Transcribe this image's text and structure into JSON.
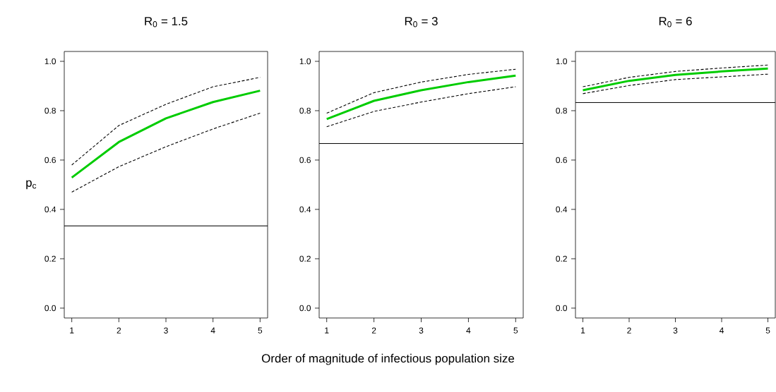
{
  "chart_data": [
    {
      "type": "line",
      "title": "R$_{0}$ = 1.5",
      "ylabel": "p$_{c}$",
      "x": [
        1,
        2,
        3,
        4,
        5
      ],
      "series": [
        {
          "color": "#000000",
          "line_style": "dashed",
          "values": [
            0.58,
            0.74,
            0.826,
            0.897,
            0.935
          ]
        },
        {
          "color": "#00cc00",
          "line_style": "solid",
          "values": [
            0.529,
            0.673,
            0.769,
            0.835,
            0.881
          ]
        },
        {
          "color": "#000000",
          "line_style": "dashed",
          "values": [
            0.47,
            0.573,
            0.654,
            0.726,
            0.79
          ]
        }
      ],
      "ref_lines": [
        {
          "axis": "y",
          "value": 0.333,
          "color": "#000000"
        }
      ],
      "xlim": [
        0.84,
        5.16
      ],
      "ylim": [
        -0.04,
        1.04
      ],
      "xticks": [
        1,
        2,
        3,
        4,
        5
      ],
      "yticks": [
        {
          "value": 0,
          "label": "0.0"
        },
        {
          "value": 0.2,
          "label": "0.2"
        },
        {
          "value": 0.4,
          "label": "0.4"
        },
        {
          "value": 0.6,
          "label": "0.6"
        },
        {
          "value": 0.8,
          "label": "0.8"
        },
        {
          "value": 1,
          "label": "1.0"
        }
      ]
    },
    {
      "type": "line",
      "title": "R$_{0}$ = 3",
      "xlabel": "Order of magnitude of infectious population size",
      "x": [
        1,
        2,
        3,
        4,
        5
      ],
      "series": [
        {
          "color": "#000000",
          "line_style": "dashed",
          "values": [
            0.79,
            0.873,
            0.916,
            0.947,
            0.968
          ]
        },
        {
          "color": "#00cc00",
          "line_style": "solid",
          "values": [
            0.766,
            0.84,
            0.883,
            0.916,
            0.942
          ]
        },
        {
          "color": "#000000",
          "line_style": "dashed",
          "values": [
            0.735,
            0.797,
            0.835,
            0.869,
            0.897
          ]
        }
      ],
      "ref_lines": [
        {
          "axis": "y",
          "value": 0.667,
          "color": "#000000"
        }
      ],
      "xlim": [
        0.84,
        5.16
      ],
      "ylim": [
        -0.04,
        1.04
      ],
      "xticks": [
        1,
        2,
        3,
        4,
        5
      ],
      "yticks": [
        {
          "value": 0,
          "label": "0.0"
        },
        {
          "value": 0.2,
          "label": "0.2"
        },
        {
          "value": 0.4,
          "label": "0.4"
        },
        {
          "value": 0.6,
          "label": "0.6"
        },
        {
          "value": 0.8,
          "label": "0.8"
        },
        {
          "value": 1,
          "label": "1.0"
        }
      ]
    },
    {
      "type": "line",
      "title": "R$_{0}$ = 6",
      "x": [
        1,
        2,
        3,
        4,
        5
      ],
      "series": [
        {
          "color": "#000000",
          "line_style": "dashed",
          "values": [
            0.897,
            0.935,
            0.959,
            0.973,
            0.985
          ]
        },
        {
          "color": "#00cc00",
          "line_style": "solid",
          "values": [
            0.883,
            0.921,
            0.945,
            0.959,
            0.971
          ]
        },
        {
          "color": "#000000",
          "line_style": "dashed",
          "values": [
            0.869,
            0.902,
            0.926,
            0.937,
            0.948
          ]
        }
      ],
      "ref_lines": [
        {
          "axis": "y",
          "value": 0.833,
          "color": "#000000"
        }
      ],
      "xlim": [
        0.84,
        5.16
      ],
      "ylim": [
        -0.04,
        1.04
      ],
      "xticks": [
        1,
        2,
        3,
        4,
        5
      ],
      "yticks": [
        {
          "value": 0,
          "label": "0.0"
        },
        {
          "value": 0.2,
          "label": "0.2"
        },
        {
          "value": 0.4,
          "label": "0.4"
        },
        {
          "value": 0.6,
          "label": "0.6"
        },
        {
          "value": 0.8,
          "label": "0.8"
        },
        {
          "value": 1,
          "label": "1.0"
        }
      ]
    }
  ]
}
